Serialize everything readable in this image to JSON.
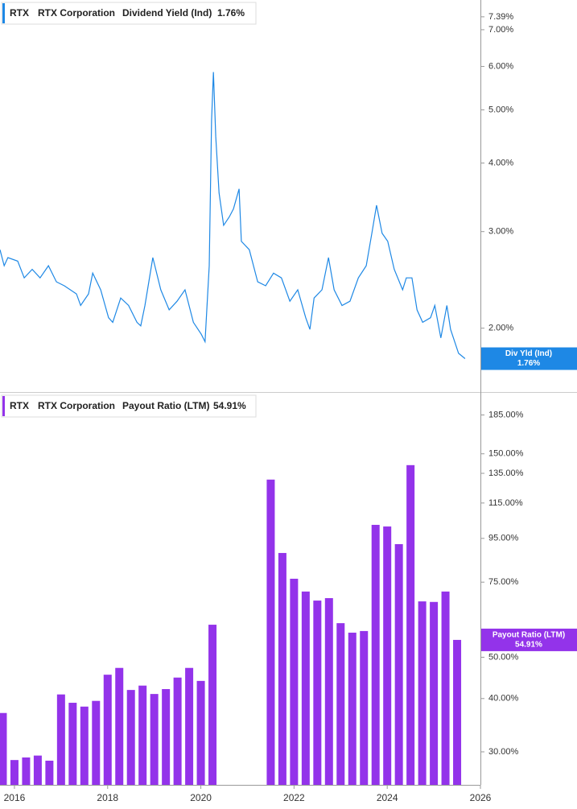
{
  "chart_data": [
    {
      "type": "line",
      "ticker": "RTX",
      "company": "RTX Corporation",
      "tag": "Div Yld (Ind)",
      "current_label": "1.76%",
      "log": true,
      "series": [
        {
          "name": "Dividend Yield (Ind)",
          "color": "#1e88e5",
          "x": [
            2015.69,
            2015.78,
            2015.86,
            2016.07,
            2016.21,
            2016.38,
            2016.55,
            2016.73,
            2016.9,
            2017.07,
            2017.33,
            2017.42,
            2017.59,
            2017.68,
            2017.85,
            2018.02,
            2018.11,
            2018.28,
            2018.45,
            2018.63,
            2018.71,
            2018.8,
            2018.97,
            2019.14,
            2019.32,
            2019.49,
            2019.66,
            2019.84,
            2020.01,
            2020.09,
            2020.18,
            2020.23,
            2020.27,
            2020.32,
            2020.39,
            2020.49,
            2020.61,
            2020.7,
            2020.82,
            2020.87,
            2021.04,
            2021.22,
            2021.39,
            2021.56,
            2021.73,
            2021.91,
            2022.08,
            2022.25,
            2022.34,
            2022.43,
            2022.6,
            2022.74,
            2022.86,
            2023.03,
            2023.2,
            2023.38,
            2023.55,
            2023.67,
            2023.77,
            2023.89,
            2024.01,
            2024.15,
            2024.33,
            2024.41,
            2024.53,
            2024.64,
            2024.76,
            2024.93,
            2025.02,
            2025.15,
            2025.28,
            2025.36,
            2025.53,
            2025.67
          ],
          "values": [
            2.78,
            2.6,
            2.69,
            2.65,
            2.47,
            2.56,
            2.47,
            2.6,
            2.43,
            2.39,
            2.31,
            2.2,
            2.31,
            2.52,
            2.35,
            2.09,
            2.05,
            2.27,
            2.2,
            2.05,
            2.02,
            2.2,
            2.69,
            2.35,
            2.16,
            2.24,
            2.35,
            2.05,
            1.95,
            1.89,
            2.6,
            4.78,
            5.86,
            4.47,
            3.53,
            3.08,
            3.19,
            3.3,
            3.59,
            2.88,
            2.78,
            2.43,
            2.39,
            2.52,
            2.47,
            2.24,
            2.35,
            2.09,
            1.99,
            2.27,
            2.35,
            2.69,
            2.35,
            2.2,
            2.24,
            2.47,
            2.6,
            2.98,
            3.35,
            2.98,
            2.88,
            2.56,
            2.35,
            2.47,
            2.47,
            2.16,
            2.05,
            2.09,
            2.2,
            1.92,
            2.2,
            1.99,
            1.8,
            1.76
          ]
        }
      ],
      "xlim": [
        2015.69,
        2026
      ],
      "ylim": [
        1.53,
        7.93
      ],
      "yticks": [
        {
          "value": 2,
          "label": "2.00%"
        },
        {
          "value": 3,
          "label": "3.00%"
        },
        {
          "value": 4,
          "label": "4.00%"
        },
        {
          "value": 5,
          "label": "5.00%"
        },
        {
          "value": 6,
          "label": "6.00%"
        },
        {
          "value": 7,
          "label": "7.00%"
        },
        {
          "value": 7.39,
          "label": "7.39%"
        }
      ]
    },
    {
      "type": "bar",
      "ticker": "RTX",
      "company": "RTX Corporation",
      "tag": "Payout Ratio (LTM)",
      "current_label": "54.91%",
      "log": true,
      "series": [
        {
          "name": "Payout Ratio (LTM)",
          "color": "#9333ea",
          "x": [
            2015.75,
            2016,
            2016.25,
            2016.5,
            2016.75,
            2017,
            2017.25,
            2017.5,
            2017.75,
            2018,
            2018.25,
            2018.5,
            2018.75,
            2019,
            2019.25,
            2019.5,
            2019.75,
            2020,
            2020.25,
            2021.5,
            2021.75,
            2022,
            2022.25,
            2022.5,
            2022.75,
            2023,
            2023.25,
            2023.5,
            2023.75,
            2024,
            2024.25,
            2024.5,
            2024.75,
            2025,
            2025.25,
            2025.5
          ],
          "values": [
            37.0,
            28.7,
            29.1,
            29.4,
            28.6,
            40.9,
            39.1,
            38.3,
            39.5,
            45.5,
            47.2,
            41.9,
            42.9,
            41.0,
            42.1,
            44.8,
            47.2,
            44.0,
            59.6,
            130.5,
            87.8,
            76.4,
            71.3,
            67.9,
            68.8,
            60.1,
            57.1,
            57.6,
            102.2,
            101.3,
            92.1,
            141.1,
            67.6,
            67.4,
            71.3,
            54.91
          ]
        }
      ],
      "xlim": [
        2015.69,
        2026
      ],
      "xticks": [
        2016,
        2018,
        2020,
        2022,
        2024,
        2026
      ],
      "ylim": [
        25.1,
        208.5
      ],
      "yticks": [
        {
          "value": 30,
          "label": "30.00%"
        },
        {
          "value": 40,
          "label": "40.00%"
        },
        {
          "value": 50,
          "label": "50.00%"
        },
        {
          "value": 75,
          "label": "75.00%"
        },
        {
          "value": 95,
          "label": "95.00%"
        },
        {
          "value": 115,
          "label": "115.00%"
        },
        {
          "value": 135,
          "label": "135.00%"
        },
        {
          "value": 150,
          "label": "150.00%"
        },
        {
          "value": 185,
          "label": "185.00%"
        }
      ]
    }
  ]
}
